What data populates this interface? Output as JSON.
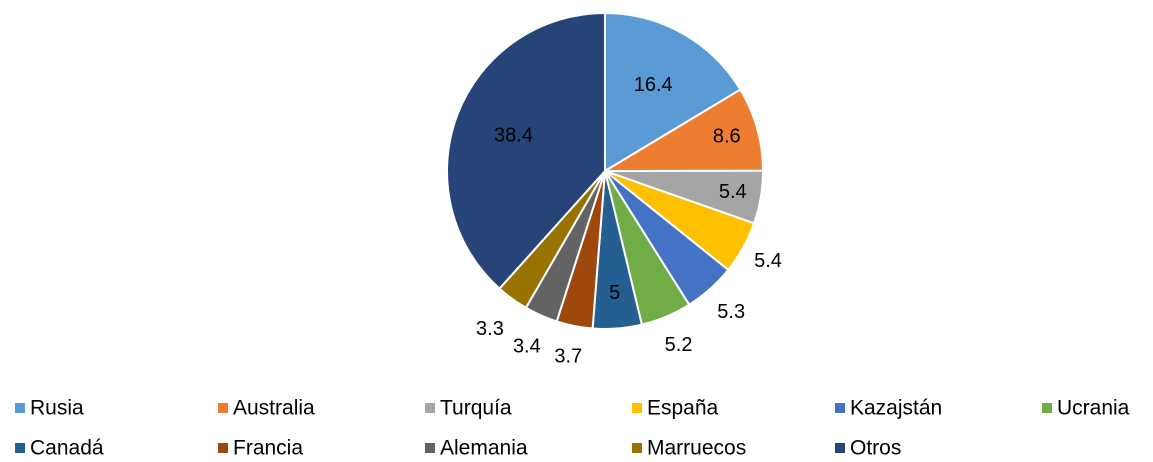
{
  "chart_data": {
    "type": "pie",
    "categories": [
      "Rusia",
      "Australia",
      "Turquía",
      "España",
      "Kazajstán",
      "Ucrania",
      "Canadá",
      "Francia",
      "Alemania",
      "Marruecos",
      "Otros"
    ],
    "values": [
      16.4,
      8.6,
      5.4,
      5.4,
      5.3,
      5.2,
      5,
      3.7,
      3.4,
      3.3,
      38.4
    ],
    "colors": [
      "#5b9bd5",
      "#ed7d31",
      "#a5a5a5",
      "#ffc000",
      "#4472c4",
      "#70ad47",
      "#255e91",
      "#9e480e",
      "#636363",
      "#997300",
      "#264478"
    ],
    "legend": "bottom"
  }
}
